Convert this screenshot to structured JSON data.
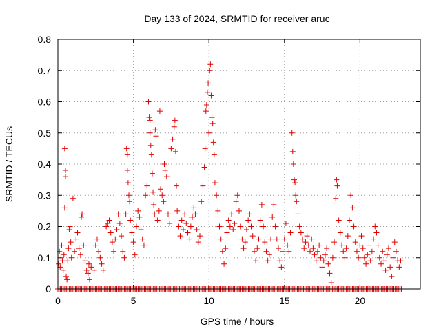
{
  "chart_data": {
    "type": "scatter",
    "title": "Day 133 of 2024, SRMTID for receiver aruc",
    "xlabel": "GPS time / hours",
    "ylabel": "SRMTID / TECUs",
    "xlim": [
      0,
      24
    ],
    "ylim": [
      0,
      0.8
    ],
    "xticks": [
      0,
      5,
      10,
      15,
      20
    ],
    "xtick_labels": [
      "0",
      "5",
      "10",
      "15",
      "20"
    ],
    "yticks": [
      0,
      0.1,
      0.2,
      0.3,
      0.4,
      0.5,
      0.6,
      0.7,
      0.8
    ],
    "ytick_labels": [
      "0",
      "0.1",
      "0.2",
      "0.3",
      "0.4",
      "0.5",
      "0.6",
      "0.7",
      "0.8"
    ],
    "grid": true,
    "marker": "+",
    "marker_color": "#e00000",
    "baseline_y": 0,
    "baseline_x_range": [
      0,
      22.8
    ],
    "baseline_step_hours": 0.083,
    "series": [
      {
        "name": "SRMTID",
        "points": [
          [
            0.05,
            0.08
          ],
          [
            0.1,
            0.12
          ],
          [
            0.15,
            0.07
          ],
          [
            0.2,
            0.1
          ],
          [
            0.25,
            0.14
          ],
          [
            0.3,
            0.09
          ],
          [
            0.35,
            0.06
          ],
          [
            0.4,
            0.11
          ],
          [
            0.45,
            0.45
          ],
          [
            0.5,
            0.38
          ],
          [
            0.5,
            0.36
          ],
          [
            0.45,
            0.26
          ],
          [
            0.55,
            0.04
          ],
          [
            0.6,
            0.03
          ],
          [
            0.65,
            0.09
          ],
          [
            0.7,
            0.13
          ],
          [
            0.75,
            0.19
          ],
          [
            0.8,
            0.2
          ],
          [
            0.85,
            0.15
          ],
          [
            0.9,
            0.1
          ],
          [
            1.0,
            0.29
          ],
          [
            1.1,
            0.12
          ],
          [
            1.2,
            0.16
          ],
          [
            1.3,
            0.18
          ],
          [
            1.4,
            0.13
          ],
          [
            1.5,
            0.11
          ],
          [
            1.55,
            0.23
          ],
          [
            1.6,
            0.24
          ],
          [
            1.7,
            0.14
          ],
          [
            1.8,
            0.09
          ],
          [
            1.9,
            0.06
          ],
          [
            2.0,
            0.05
          ],
          [
            2.05,
            0.08
          ],
          [
            2.1,
            0.03
          ],
          [
            2.2,
            0.07
          ],
          [
            2.4,
            0.06
          ],
          [
            2.5,
            0.14
          ],
          [
            2.6,
            0.16
          ],
          [
            2.7,
            0.12
          ],
          [
            2.8,
            0.1
          ],
          [
            2.9,
            0.08
          ],
          [
            3.0,
            0.06
          ],
          [
            3.2,
            0.2
          ],
          [
            3.3,
            0.21
          ],
          [
            3.4,
            0.22
          ],
          [
            3.5,
            0.18
          ],
          [
            3.6,
            0.15
          ],
          [
            3.7,
            0.12
          ],
          [
            3.8,
            0.16
          ],
          [
            3.9,
            0.19
          ],
          [
            4.0,
            0.24
          ],
          [
            4.1,
            0.21
          ],
          [
            4.2,
            0.17
          ],
          [
            4.3,
            0.12
          ],
          [
            4.4,
            0.1
          ],
          [
            4.5,
            0.24
          ],
          [
            4.55,
            0.45
          ],
          [
            4.6,
            0.43
          ],
          [
            4.6,
            0.38
          ],
          [
            4.65,
            0.34
          ],
          [
            4.7,
            0.3
          ],
          [
            4.75,
            0.28
          ],
          [
            4.8,
            0.22
          ],
          [
            4.9,
            0.18
          ],
          [
            5.0,
            0.15
          ],
          [
            5.1,
            0.11
          ],
          [
            5.2,
            0.2
          ],
          [
            5.3,
            0.25
          ],
          [
            5.4,
            0.23
          ],
          [
            5.5,
            0.19
          ],
          [
            5.6,
            0.16
          ],
          [
            5.7,
            0.14
          ],
          [
            5.8,
            0.3
          ],
          [
            5.9,
            0.33
          ],
          [
            6.0,
            0.6
          ],
          [
            6.05,
            0.55
          ],
          [
            6.1,
            0.54
          ],
          [
            6.1,
            0.5
          ],
          [
            6.15,
            0.46
          ],
          [
            6.2,
            0.43
          ],
          [
            6.25,
            0.37
          ],
          [
            6.3,
            0.31
          ],
          [
            6.35,
            0.27
          ],
          [
            6.4,
            0.24
          ],
          [
            6.45,
            0.51
          ],
          [
            6.5,
            0.49
          ],
          [
            6.6,
            0.22
          ],
          [
            6.7,
            0.25
          ],
          [
            6.75,
            0.57
          ],
          [
            6.8,
            0.32
          ],
          [
            6.9,
            0.3
          ],
          [
            7.0,
            0.28
          ],
          [
            7.05,
            0.4
          ],
          [
            7.1,
            0.38
          ],
          [
            7.2,
            0.36
          ],
          [
            7.3,
            0.24
          ],
          [
            7.4,
            0.21
          ],
          [
            7.5,
            0.45
          ],
          [
            7.6,
            0.48
          ],
          [
            7.7,
            0.52
          ],
          [
            7.75,
            0.54
          ],
          [
            7.8,
            0.44
          ],
          [
            7.85,
            0.33
          ],
          [
            7.9,
            0.25
          ],
          [
            8.0,
            0.2
          ],
          [
            8.1,
            0.17
          ],
          [
            8.2,
            0.22
          ],
          [
            8.3,
            0.19
          ],
          [
            8.4,
            0.24
          ],
          [
            8.5,
            0.21
          ],
          [
            8.6,
            0.18
          ],
          [
            8.7,
            0.16
          ],
          [
            8.8,
            0.2
          ],
          [
            8.9,
            0.23
          ],
          [
            9.0,
            0.26
          ],
          [
            9.1,
            0.24
          ],
          [
            9.2,
            0.19
          ],
          [
            9.3,
            0.15
          ],
          [
            9.4,
            0.17
          ],
          [
            9.5,
            0.28
          ],
          [
            9.6,
            0.33
          ],
          [
            9.7,
            0.39
          ],
          [
            9.75,
            0.45
          ],
          [
            9.8,
            0.57
          ],
          [
            9.85,
            0.59
          ],
          [
            9.9,
            0.63
          ],
          [
            9.95,
            0.66
          ],
          [
            10.0,
            0.5
          ],
          [
            10.05,
            0.7
          ],
          [
            10.1,
            0.72
          ],
          [
            10.15,
            0.62
          ],
          [
            10.2,
            0.55
          ],
          [
            10.25,
            0.53
          ],
          [
            10.3,
            0.47
          ],
          [
            10.35,
            0.43
          ],
          [
            10.4,
            0.34
          ],
          [
            10.5,
            0.3
          ],
          [
            10.6,
            0.25
          ],
          [
            10.7,
            0.2
          ],
          [
            10.8,
            0.16
          ],
          [
            10.9,
            0.12
          ],
          [
            11.0,
            0.08
          ],
          [
            11.1,
            0.13
          ],
          [
            11.2,
            0.18
          ],
          [
            11.3,
            0.22
          ],
          [
            11.4,
            0.2
          ],
          [
            11.5,
            0.24
          ],
          [
            11.6,
            0.19
          ],
          [
            11.7,
            0.21
          ],
          [
            11.8,
            0.28
          ],
          [
            11.9,
            0.3
          ],
          [
            12.0,
            0.25
          ],
          [
            12.1,
            0.2
          ],
          [
            12.2,
            0.16
          ],
          [
            12.3,
            0.13
          ],
          [
            12.4,
            0.15
          ],
          [
            12.5,
            0.19
          ],
          [
            12.6,
            0.22
          ],
          [
            12.7,
            0.24
          ],
          [
            12.8,
            0.2
          ],
          [
            12.9,
            0.17
          ],
          [
            13.0,
            0.12
          ],
          [
            13.1,
            0.09
          ],
          [
            13.2,
            0.13
          ],
          [
            13.3,
            0.16
          ],
          [
            13.4,
            0.22
          ],
          [
            13.5,
            0.27
          ],
          [
            13.6,
            0.2
          ],
          [
            13.7,
            0.15
          ],
          [
            13.8,
            0.12
          ],
          [
            13.9,
            0.09
          ],
          [
            14.0,
            0.11
          ],
          [
            14.1,
            0.16
          ],
          [
            14.2,
            0.23
          ],
          [
            14.3,
            0.27
          ],
          [
            14.4,
            0.2
          ],
          [
            14.5,
            0.16
          ],
          [
            14.6,
            0.13
          ],
          [
            14.7,
            0.09
          ],
          [
            14.8,
            0.07
          ],
          [
            14.9,
            0.12
          ],
          [
            15.0,
            0.16
          ],
          [
            15.1,
            0.21
          ],
          [
            15.2,
            0.14
          ],
          [
            15.3,
            0.12
          ],
          [
            15.4,
            0.18
          ],
          [
            15.5,
            0.5
          ],
          [
            15.55,
            0.44
          ],
          [
            15.6,
            0.4
          ],
          [
            15.65,
            0.35
          ],
          [
            15.7,
            0.34
          ],
          [
            15.75,
            0.3
          ],
          [
            15.8,
            0.28
          ],
          [
            15.9,
            0.24
          ],
          [
            16.0,
            0.2
          ],
          [
            16.1,
            0.18
          ],
          [
            16.2,
            0.16
          ],
          [
            16.3,
            0.13
          ],
          [
            16.4,
            0.15
          ],
          [
            16.5,
            0.17
          ],
          [
            16.6,
            0.14
          ],
          [
            16.7,
            0.12
          ],
          [
            16.8,
            0.16
          ],
          [
            16.9,
            0.13
          ],
          [
            17.0,
            0.11
          ],
          [
            17.1,
            0.09
          ],
          [
            17.2,
            0.12
          ],
          [
            17.3,
            0.14
          ],
          [
            17.4,
            0.1
          ],
          [
            17.5,
            0.07
          ],
          [
            17.6,
            0.09
          ],
          [
            17.7,
            0.11
          ],
          [
            17.8,
            0.13
          ],
          [
            17.9,
            0.08
          ],
          [
            18.0,
            0.05
          ],
          [
            18.1,
            0.02
          ],
          [
            18.2,
            0.1
          ],
          [
            18.3,
            0.15
          ],
          [
            18.4,
            0.29
          ],
          [
            18.45,
            0.35
          ],
          [
            18.5,
            0.33
          ],
          [
            18.6,
            0.22
          ],
          [
            18.7,
            0.18
          ],
          [
            18.8,
            0.14
          ],
          [
            18.9,
            0.12
          ],
          [
            19.0,
            0.1
          ],
          [
            19.1,
            0.13
          ],
          [
            19.2,
            0.17
          ],
          [
            19.3,
            0.22
          ],
          [
            19.4,
            0.3
          ],
          [
            19.5,
            0.26
          ],
          [
            19.6,
            0.2
          ],
          [
            19.7,
            0.15
          ],
          [
            19.8,
            0.12
          ],
          [
            19.9,
            0.1
          ],
          [
            20.0,
            0.14
          ],
          [
            20.1,
            0.17
          ],
          [
            20.2,
            0.13
          ],
          [
            20.3,
            0.1
          ],
          [
            20.4,
            0.08
          ],
          [
            20.5,
            0.11
          ],
          [
            20.6,
            0.14
          ],
          [
            20.7,
            0.09
          ],
          [
            20.8,
            0.12
          ],
          [
            20.9,
            0.16
          ],
          [
            21.0,
            0.2
          ],
          [
            21.1,
            0.18
          ],
          [
            21.2,
            0.14
          ],
          [
            21.3,
            0.1
          ],
          [
            21.4,
            0.08
          ],
          [
            21.5,
            0.12
          ],
          [
            21.6,
            0.09
          ],
          [
            21.7,
            0.06
          ],
          [
            21.8,
            0.11
          ],
          [
            21.9,
            0.13
          ],
          [
            22.0,
            0.07
          ],
          [
            22.1,
            0.04
          ],
          [
            22.2,
            0.1
          ],
          [
            22.3,
            0.15
          ],
          [
            22.4,
            0.12
          ],
          [
            22.5,
            0.09
          ],
          [
            22.6,
            0.07
          ],
          [
            22.7,
            0.09
          ]
        ]
      }
    ]
  }
}
